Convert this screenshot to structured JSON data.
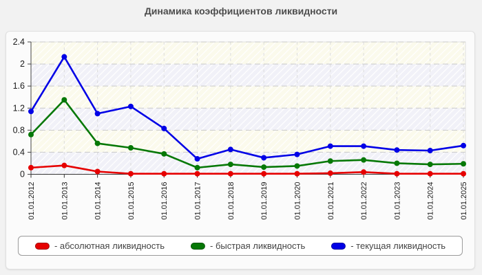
{
  "title": "Динамика коэффициентов ликвидности",
  "chart_data": {
    "type": "line",
    "categories": [
      "01.01.2012",
      "01.01.2013",
      "01.01.2014",
      "01.01.2015",
      "01.01.2016",
      "01.01.2017",
      "01.01.2018",
      "01.01.2019",
      "01.01.2020",
      "01.01.2021",
      "01.01.2022",
      "01.01.2023",
      "01.01.2024",
      "01.01.2025"
    ],
    "series": [
      {
        "name": "- абсолютная ликвидность",
        "color": "#e60000",
        "values": [
          0.12,
          0.16,
          0.05,
          0.01,
          0.01,
          0.01,
          0.01,
          0.01,
          0.01,
          0.02,
          0.04,
          0.01,
          0.01,
          0.01
        ]
      },
      {
        "name": "- быстрая ликвидность",
        "color": "#067806",
        "values": [
          0.72,
          1.35,
          0.56,
          0.48,
          0.37,
          0.12,
          0.18,
          0.13,
          0.15,
          0.24,
          0.26,
          0.2,
          0.18,
          0.19
        ]
      },
      {
        "name": "- текущая ликвидность",
        "color": "#0000e6",
        "values": [
          1.14,
          2.13,
          1.1,
          1.23,
          0.83,
          0.28,
          0.45,
          0.3,
          0.36,
          0.51,
          0.51,
          0.44,
          0.43,
          0.52
        ]
      }
    ],
    "xlabel": "",
    "ylabel": "",
    "ylim": [
      0,
      2.4
    ],
    "yticks": [
      0,
      0.4,
      0.8,
      1.2,
      1.6,
      2,
      2.4
    ],
    "grid": true,
    "legend_position": "bottom",
    "plot_band_colors": [
      "#f1f1f8",
      "#fbfaec"
    ],
    "gridline_color": "#c9c9c9",
    "axis_color": "#444444",
    "tick_label_color": "#1a1a1a"
  }
}
